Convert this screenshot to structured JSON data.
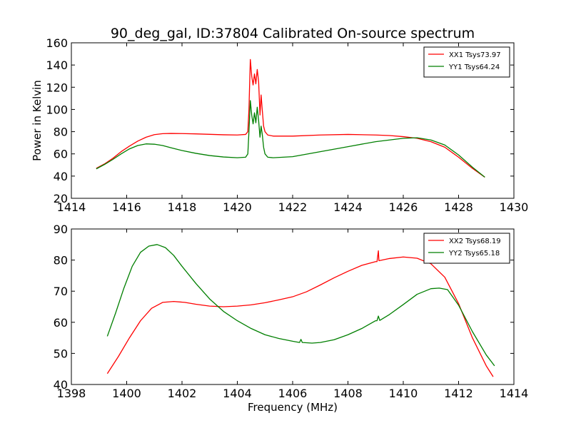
{
  "figure": {
    "title": "90_deg_gal, ID:37804 Calibrated On-source spectrum"
  },
  "chart_data": [
    {
      "type": "line",
      "xlabel": "",
      "ylabel": "Power in Kelvin",
      "xlim": [
        1414,
        1430
      ],
      "ylim": [
        20,
        160
      ],
      "xticks": [
        1414,
        1416,
        1418,
        1420,
        1422,
        1424,
        1426,
        1428,
        1430
      ],
      "yticks": [
        20,
        40,
        60,
        80,
        100,
        120,
        140,
        160
      ],
      "legend": "top-right",
      "series": [
        {
          "name": "XX1 Tsys73.97",
          "color": "#ff0000",
          "points": [
            [
              1414.9,
              47
            ],
            [
              1415.2,
              51
            ],
            [
              1415.5,
              56
            ],
            [
              1415.8,
              62
            ],
            [
              1416.1,
              67
            ],
            [
              1416.4,
              71.5
            ],
            [
              1416.7,
              75
            ],
            [
              1417.0,
              77.3
            ],
            [
              1417.3,
              78.2
            ],
            [
              1417.6,
              78.4
            ],
            [
              1418.0,
              78.3
            ],
            [
              1418.5,
              78
            ],
            [
              1419.0,
              77.6
            ],
            [
              1419.5,
              77.2
            ],
            [
              1420.0,
              77
            ],
            [
              1420.3,
              77.5
            ],
            [
              1420.38,
              80
            ],
            [
              1420.42,
              100
            ],
            [
              1420.47,
              145
            ],
            [
              1420.52,
              130
            ],
            [
              1420.57,
              122
            ],
            [
              1420.62,
              132
            ],
            [
              1420.67,
              123
            ],
            [
              1420.72,
              136
            ],
            [
              1420.77,
              125
            ],
            [
              1420.82,
              95
            ],
            [
              1420.86,
              113
            ],
            [
              1420.9,
              100
            ],
            [
              1420.95,
              85
            ],
            [
              1421.0,
              80
            ],
            [
              1421.1,
              77
            ],
            [
              1421.3,
              76
            ],
            [
              1422.0,
              76
            ],
            [
              1423.0,
              77
            ],
            [
              1424.0,
              77.5
            ],
            [
              1425.0,
              77
            ],
            [
              1425.5,
              76.5
            ],
            [
              1426.0,
              75.5
            ],
            [
              1426.5,
              74
            ],
            [
              1427.0,
              71
            ],
            [
              1427.5,
              66
            ],
            [
              1428.0,
              57
            ],
            [
              1428.5,
              47
            ],
            [
              1428.95,
              39
            ]
          ]
        },
        {
          "name": "YY1 Tsys64.24",
          "color": "#007f00",
          "points": [
            [
              1414.9,
              46.5
            ],
            [
              1415.2,
              50.5
            ],
            [
              1415.5,
              55
            ],
            [
              1415.8,
              60
            ],
            [
              1416.1,
              64.5
            ],
            [
              1416.4,
              67.5
            ],
            [
              1416.7,
              69
            ],
            [
              1417.0,
              68.7
            ],
            [
              1417.3,
              67.5
            ],
            [
              1417.6,
              65.5
            ],
            [
              1418.0,
              63
            ],
            [
              1418.5,
              60.5
            ],
            [
              1419.0,
              58.5
            ],
            [
              1419.5,
              57.2
            ],
            [
              1420.0,
              56.5
            ],
            [
              1420.3,
              57
            ],
            [
              1420.38,
              60
            ],
            [
              1420.42,
              80
            ],
            [
              1420.47,
              108
            ],
            [
              1420.52,
              95
            ],
            [
              1420.57,
              87
            ],
            [
              1420.62,
              97
            ],
            [
              1420.67,
              88
            ],
            [
              1420.72,
              102
            ],
            [
              1420.77,
              90
            ],
            [
              1420.82,
              75
            ],
            [
              1420.86,
              85
            ],
            [
              1420.9,
              78
            ],
            [
              1420.95,
              66
            ],
            [
              1421.0,
              60
            ],
            [
              1421.1,
              57
            ],
            [
              1421.3,
              56.5
            ],
            [
              1422.0,
              57.5
            ],
            [
              1423.0,
              62
            ],
            [
              1424.0,
              66.5
            ],
            [
              1425.0,
              71
            ],
            [
              1425.5,
              72.5
            ],
            [
              1426.0,
              74
            ],
            [
              1426.5,
              74.5
            ],
            [
              1427.0,
              72.5
            ],
            [
              1427.5,
              68
            ],
            [
              1428.0,
              59
            ],
            [
              1428.5,
              48
            ],
            [
              1428.95,
              39
            ]
          ]
        }
      ]
    },
    {
      "type": "line",
      "xlabel": "Frequency (MHz)",
      "ylabel": "",
      "xlim": [
        1398,
        1414
      ],
      "ylim": [
        40,
        90
      ],
      "xticks": [
        1398,
        1400,
        1402,
        1404,
        1406,
        1408,
        1410,
        1412,
        1414
      ],
      "yticks": [
        40,
        50,
        60,
        70,
        80,
        90
      ],
      "legend": "top-right",
      "series": [
        {
          "name": "XX2 Tsys68.19",
          "color": "#ff0000",
          "points": [
            [
              1399.3,
              43.5
            ],
            [
              1399.7,
              49
            ],
            [
              1400.1,
              55
            ],
            [
              1400.5,
              60.5
            ],
            [
              1400.9,
              64.5
            ],
            [
              1401.3,
              66.4
            ],
            [
              1401.7,
              66.7
            ],
            [
              1402.1,
              66.4
            ],
            [
              1402.5,
              65.8
            ],
            [
              1403.0,
              65.2
            ],
            [
              1403.5,
              65
            ],
            [
              1404.0,
              65.2
            ],
            [
              1404.5,
              65.6
            ],
            [
              1405.0,
              66.3
            ],
            [
              1405.5,
              67.2
            ],
            [
              1406.0,
              68.2
            ],
            [
              1406.5,
              69.8
            ],
            [
              1407.0,
              72
            ],
            [
              1407.5,
              74.3
            ],
            [
              1408.0,
              76.4
            ],
            [
              1408.5,
              78.3
            ],
            [
              1409.0,
              79.5
            ],
            [
              1409.05,
              79.5
            ],
            [
              1409.1,
              83
            ],
            [
              1409.12,
              79.8
            ],
            [
              1409.5,
              80.5
            ],
            [
              1410.0,
              81
            ],
            [
              1410.5,
              80.6
            ],
            [
              1411.0,
              78.8
            ],
            [
              1411.5,
              74.5
            ],
            [
              1412.0,
              66
            ],
            [
              1412.5,
              55
            ],
            [
              1413.0,
              46
            ],
            [
              1413.25,
              42.5
            ]
          ]
        },
        {
          "name": "YY2 Tsys65.18",
          "color": "#007f00",
          "points": [
            [
              1399.3,
              55.5
            ],
            [
              1399.6,
              63
            ],
            [
              1399.9,
              71
            ],
            [
              1400.2,
              78
            ],
            [
              1400.5,
              82.5
            ],
            [
              1400.8,
              84.5
            ],
            [
              1401.1,
              85
            ],
            [
              1401.4,
              84
            ],
            [
              1401.7,
              81.5
            ],
            [
              1402.0,
              78
            ],
            [
              1402.5,
              72.5
            ],
            [
              1403.0,
              67.5
            ],
            [
              1403.5,
              63.5
            ],
            [
              1404.0,
              60.5
            ],
            [
              1404.5,
              58
            ],
            [
              1405.0,
              56
            ],
            [
              1405.5,
              54.8
            ],
            [
              1406.0,
              53.9
            ],
            [
              1406.25,
              53.5
            ],
            [
              1406.3,
              54.5
            ],
            [
              1406.35,
              53.5
            ],
            [
              1406.7,
              53.3
            ],
            [
              1407.0,
              53.5
            ],
            [
              1407.5,
              54.4
            ],
            [
              1408.0,
              56
            ],
            [
              1408.5,
              58
            ],
            [
              1409.0,
              60.5
            ],
            [
              1409.05,
              60.5
            ],
            [
              1409.1,
              62
            ],
            [
              1409.15,
              60.6
            ],
            [
              1409.5,
              62.5
            ],
            [
              1410.0,
              65.7
            ],
            [
              1410.5,
              69
            ],
            [
              1411.0,
              70.8
            ],
            [
              1411.3,
              71
            ],
            [
              1411.6,
              70.5
            ],
            [
              1412.0,
              65.5
            ],
            [
              1412.5,
              57
            ],
            [
              1413.0,
              49.5
            ],
            [
              1413.3,
              46
            ]
          ]
        }
      ]
    }
  ]
}
